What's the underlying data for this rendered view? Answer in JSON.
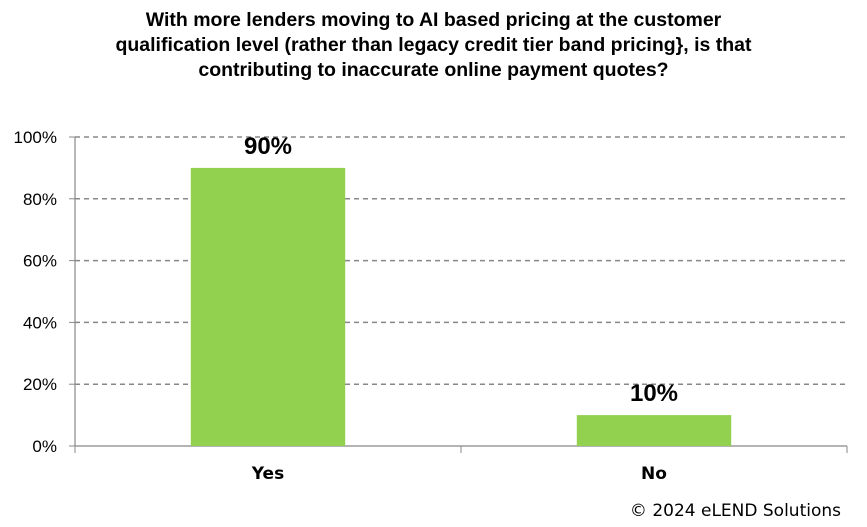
{
  "chart_data": {
    "type": "bar",
    "title_lines": [
      "With more lenders moving to AI based pricing at the customer",
      "qualification level (rather than legacy credit tier band pricing}, is that",
      "contributing to inaccurate online payment quotes?"
    ],
    "categories": [
      "Yes",
      "No"
    ],
    "values": [
      90,
      10
    ],
    "data_labels": [
      "90%",
      "10%"
    ],
    "y_ticks": [
      "0%",
      "20%",
      "40%",
      "60%",
      "80%",
      "100%"
    ],
    "ylim": [
      0,
      100
    ],
    "grid": true,
    "bar_color": "#92D050",
    "grid_color": "#888888",
    "axis_color": "#888888"
  },
  "footer": {
    "copyright": "© 2024 eLEND Solutions"
  }
}
